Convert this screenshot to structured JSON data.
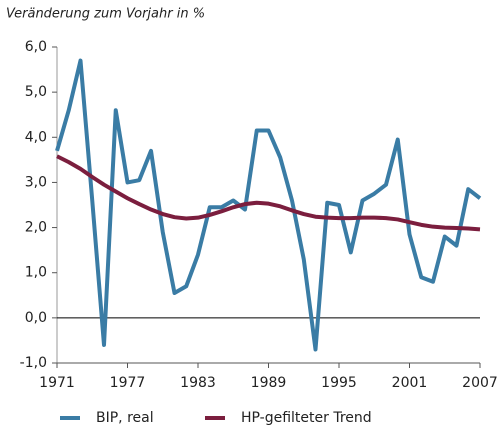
{
  "chart_data": {
    "type": "line",
    "subtitle": "Veränderung zum Vorjahr in %",
    "x": [
      1971,
      1972,
      1973,
      1974,
      1975,
      1976,
      1977,
      1978,
      1979,
      1980,
      1981,
      1982,
      1983,
      1984,
      1985,
      1986,
      1987,
      1988,
      1989,
      1990,
      1991,
      1992,
      1993,
      1994,
      1995,
      1996,
      1997,
      1998,
      1999,
      2000,
      2001,
      2002,
      2003,
      2004,
      2005,
      2006,
      2007
    ],
    "series": [
      {
        "name": "BIP, real",
        "color": "#3a7ca5",
        "values": [
          3.7,
          4.6,
          5.7,
          2.6,
          -0.6,
          4.6,
          3.0,
          3.05,
          3.7,
          1.9,
          0.55,
          0.7,
          1.4,
          2.45,
          2.45,
          2.6,
          2.4,
          4.15,
          4.15,
          3.55,
          2.6,
          1.3,
          -0.7,
          2.55,
          2.5,
          1.45,
          2.6,
          2.75,
          2.95,
          3.95,
          1.85,
          0.9,
          0.8,
          1.8,
          1.6,
          2.85,
          2.65
        ]
      },
      {
        "name": "HP-gefilteter Trend",
        "color": "#7b1e3e",
        "values": [
          3.58,
          3.45,
          3.3,
          3.12,
          2.95,
          2.8,
          2.65,
          2.52,
          2.4,
          2.3,
          2.23,
          2.2,
          2.22,
          2.28,
          2.36,
          2.45,
          2.52,
          2.55,
          2.53,
          2.47,
          2.38,
          2.3,
          2.24,
          2.22,
          2.21,
          2.21,
          2.22,
          2.22,
          2.21,
          2.18,
          2.12,
          2.06,
          2.02,
          2.0,
          1.99,
          1.98,
          1.96
        ]
      }
    ],
    "xlim": [
      1971,
      2007
    ],
    "xticks": [
      1971,
      1977,
      1983,
      1989,
      1995,
      2001,
      2007
    ],
    "ylim": [
      -1,
      6
    ],
    "yticks": [
      {
        "value": -1,
        "label": "-1,0"
      },
      {
        "value": 0,
        "label": "0,0"
      },
      {
        "value": 1,
        "label": "1,0"
      },
      {
        "value": 2,
        "label": "2,0"
      },
      {
        "value": 3,
        "label": "3,0"
      },
      {
        "value": 4,
        "label": "4,0"
      },
      {
        "value": 5,
        "label": "5,0"
      },
      {
        "value": 6,
        "label": "6,0"
      }
    ],
    "zero_line": true
  }
}
